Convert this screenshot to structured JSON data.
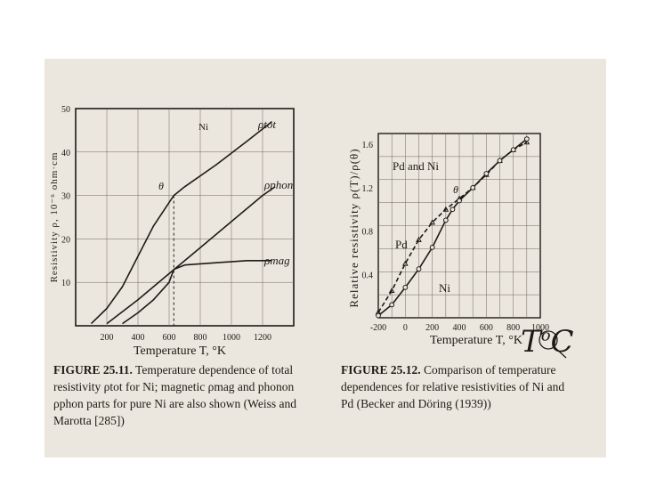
{
  "figure_left": {
    "ylabel": "Resistivity ρ, 10⁻⁶ ohm·cm",
    "yticks": [
      "50",
      "40",
      "30",
      "20",
      "10"
    ],
    "xticks": [
      "200",
      "400",
      "600",
      "800",
      "1000",
      "1200"
    ],
    "xlabel": "Temperature T, °K",
    "labels": {
      "metal": "Ni",
      "theta": "θ",
      "tot": "ρtot",
      "phon": "ρphon",
      "mag": "ρmag"
    },
    "chart_data": {
      "type": "line",
      "xlim": [
        0,
        1400
      ],
      "ylim": [
        0,
        50
      ],
      "series": [
        {
          "name": "ρtot",
          "x": [
            100,
            200,
            300,
            400,
            500,
            630,
            700,
            900,
            1100,
            1260
          ],
          "y": [
            0.5,
            4,
            9,
            16,
            23,
            30,
            32,
            37,
            42.5,
            47
          ]
        },
        {
          "name": "ρphon",
          "x": [
            200,
            400,
            600,
            800,
            1000,
            1200,
            1280
          ],
          "y": [
            0.5,
            6,
            12,
            18,
            24,
            30,
            32
          ]
        },
        {
          "name": "ρmag",
          "x": [
            300,
            400,
            500,
            600,
            630,
            700,
            900,
            1100,
            1260
          ],
          "y": [
            0.5,
            3,
            6,
            10,
            13,
            14,
            14.5,
            15,
            15
          ]
        }
      ]
    },
    "caption_label": "FIGURE 25.11.",
    "caption_text": "Temperature dependence of total resistivity ρtot for Ni; magnetic ρmag and phonon ρphon parts for pure Ni are also shown (Weiss and Marotta [285])"
  },
  "figure_right": {
    "ylabel": "Relative resistivity ρ(T)/ρ(θ)",
    "yticks": [
      "1.6",
      "1.2",
      "0.8",
      "0.4"
    ],
    "xticks": [
      "-200",
      "0",
      "200",
      "400",
      "600",
      "800",
      "1000"
    ],
    "xlabel": "Temperature T, °K",
    "labels": {
      "title": "Pd and Ni",
      "pd": "Pd",
      "ni": "Ni",
      "theta": "θ"
    },
    "chart_data": {
      "type": "line",
      "xlim": [
        -200,
        1000
      ],
      "ylim": [
        0,
        1.7
      ],
      "series": [
        {
          "name": "Pd",
          "x": [
            -200,
            -100,
            0,
            100,
            200,
            300,
            400,
            500,
            600,
            700,
            800,
            900
          ],
          "y": [
            0.05,
            0.25,
            0.5,
            0.72,
            0.88,
            1.0,
            1.1,
            1.2,
            1.32,
            1.45,
            1.55,
            1.62
          ]
        },
        {
          "name": "Ni",
          "x": [
            -200,
            -100,
            0,
            100,
            200,
            300,
            350,
            400,
            500,
            600,
            700,
            800,
            900
          ],
          "y": [
            0.02,
            0.12,
            0.28,
            0.45,
            0.65,
            0.9,
            1.0,
            1.08,
            1.2,
            1.33,
            1.45,
            1.55,
            1.65
          ]
        }
      ]
    },
    "caption_label": "FIGURE 25.12.",
    "caption_text": "Comparison of temperature dependences for relative resistivities of Ni and Pd (Becker and Döring (1939))"
  },
  "handwritten_note": {
    "base": "T",
    "superscript": "o",
    "suffix": "C"
  }
}
